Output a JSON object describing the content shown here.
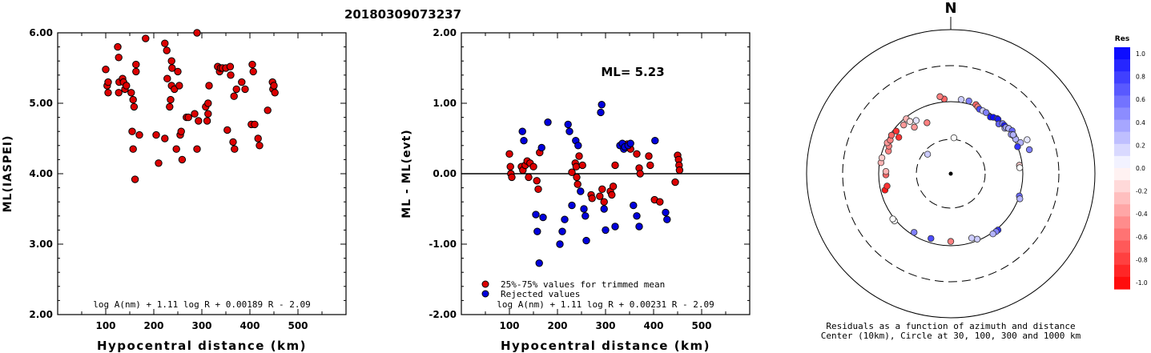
{
  "page_title": "20180309073237",
  "chart_data": [
    {
      "type": "scatter",
      "xlabel": "Hypocentral distance (km)",
      "ylabel": "ML(IASPEI)",
      "xlim": [
        0,
        600
      ],
      "ylim": [
        2.0,
        6.0
      ],
      "x_ticks": [
        "100",
        "200",
        "300",
        "400",
        "500"
      ],
      "y_ticks": [
        "2.00",
        "3.00",
        "4.00",
        "5.00",
        "6.00"
      ],
      "formula": "log A(nm) + 1.11 log R + 0.00189 R - 2.09",
      "series": [
        {
          "color": "#dd0000",
          "points": [
            [
              100,
              5.48
            ],
            [
              103,
              5.25
            ],
            [
              105,
              5.15
            ],
            [
              105,
              5.3
            ],
            [
              125,
              5.8
            ],
            [
              127,
              5.65
            ],
            [
              127,
              5.15
            ],
            [
              128,
              5.3
            ],
            [
              135,
              5.35
            ],
            [
              137,
              5.3
            ],
            [
              140,
              5.2
            ],
            [
              143,
              5.25
            ],
            [
              153,
              5.15
            ],
            [
              155,
              4.6
            ],
            [
              157,
              4.35
            ],
            [
              157,
              5.05
            ],
            [
              159,
              4.95
            ],
            [
              161,
              3.92
            ],
            [
              163,
              5.55
            ],
            [
              163,
              5.45
            ],
            [
              170,
              4.55
            ],
            [
              183,
              5.92
            ],
            [
              205,
              4.55
            ],
            [
              210,
              4.15
            ],
            [
              223,
              4.5
            ],
            [
              223,
              5.85
            ],
            [
              227,
              5.75
            ],
            [
              228,
              5.35
            ],
            [
              233,
              4.95
            ],
            [
              235,
              5.05
            ],
            [
              237,
              5.25
            ],
            [
              237,
              5.6
            ],
            [
              238,
              5.5
            ],
            [
              243,
              5.2
            ],
            [
              247,
              4.35
            ],
            [
              250,
              5.45
            ],
            [
              253,
              5.25
            ],
            [
              255,
              4.55
            ],
            [
              257,
              4.6
            ],
            [
              259,
              4.2
            ],
            [
              268,
              4.8
            ],
            [
              272,
              4.8
            ],
            [
              285,
              4.85
            ],
            [
              290,
              4.35
            ],
            [
              290,
              6.0
            ],
            [
              293,
              4.75
            ],
            [
              308,
              4.95
            ],
            [
              311,
              4.75
            ],
            [
              313,
              5.0
            ],
            [
              313,
              4.85
            ],
            [
              315,
              5.25
            ],
            [
              333,
              5.52
            ],
            [
              337,
              5.45
            ],
            [
              339,
              5.5
            ],
            [
              343,
              5.5
            ],
            [
              350,
              5.5
            ],
            [
              353,
              4.62
            ],
            [
              359,
              5.52
            ],
            [
              360,
              5.4
            ],
            [
              365,
              4.45
            ],
            [
              367,
              5.1
            ],
            [
              368,
              4.35
            ],
            [
              372,
              5.2
            ],
            [
              383,
              5.3
            ],
            [
              390,
              5.2
            ],
            [
              403,
              4.7
            ],
            [
              405,
              5.55
            ],
            [
              407,
              5.45
            ],
            [
              410,
              4.7
            ],
            [
              417,
              4.5
            ],
            [
              420,
              4.4
            ],
            [
              437,
              4.9
            ],
            [
              447,
              5.3
            ],
            [
              448,
              5.2
            ],
            [
              450,
              5.25
            ],
            [
              452,
              5.15
            ]
          ]
        }
      ]
    },
    {
      "type": "scatter",
      "xlabel": "Hypocentral distance (km)",
      "ylabel": "ML - ML(evt)",
      "xlim": [
        0,
        600
      ],
      "ylim": [
        -2.0,
        2.0
      ],
      "x_ticks": [
        "100",
        "200",
        "300",
        "400",
        "500"
      ],
      "y_ticks": [
        "-2.00",
        "-1.00",
        "0.00",
        "1.00",
        "2.00"
      ],
      "ml_text": "ML= 5.23",
      "formula": "log A(nm) + 1.11 log R + 0.00231 R - 2.09",
      "series": [
        {
          "name": "25%-75% values for trimmed mean",
          "color": "#dd0000",
          "points": [
            [
              100,
              0.28
            ],
            [
              102,
              0.1
            ],
            [
              103,
              0.0
            ],
            [
              105,
              -0.05
            ],
            [
              125,
              0.1
            ],
            [
              128,
              0.05
            ],
            [
              133,
              0.12
            ],
            [
              137,
              0.18
            ],
            [
              140,
              -0.05
            ],
            [
              143,
              0.15
            ],
            [
              150,
              0.1
            ],
            [
              157,
              -0.1
            ],
            [
              160,
              -0.22
            ],
            [
              163,
              0.3
            ],
            [
              230,
              0.02
            ],
            [
              237,
              0.15
            ],
            [
              239,
              0.1
            ],
            [
              240,
              -0.05
            ],
            [
              242,
              -0.15
            ],
            [
              245,
              0.25
            ],
            [
              252,
              0.12
            ],
            [
              270,
              -0.3
            ],
            [
              272,
              -0.35
            ],
            [
              288,
              -0.32
            ],
            [
              293,
              -0.22
            ],
            [
              297,
              -0.4
            ],
            [
              310,
              -0.25
            ],
            [
              313,
              -0.3
            ],
            [
              316,
              -0.18
            ],
            [
              320,
              0.12
            ],
            [
              345,
              0.42
            ],
            [
              352,
              0.35
            ],
            [
              365,
              0.28
            ],
            [
              370,
              0.08
            ],
            [
              372,
              0.0
            ],
            [
              390,
              0.25
            ],
            [
              393,
              0.12
            ],
            [
              402,
              -0.37
            ],
            [
              413,
              -0.4
            ],
            [
              445,
              -0.12
            ],
            [
              450,
              0.26
            ],
            [
              452,
              0.2
            ],
            [
              453,
              0.12
            ],
            [
              454,
              0.05
            ]
          ]
        },
        {
          "name": "Rejected values",
          "color": "#0000dd",
          "points": [
            [
              127,
              0.6
            ],
            [
              130,
              0.47
            ],
            [
              155,
              -0.58
            ],
            [
              158,
              -0.82
            ],
            [
              162,
              -1.27
            ],
            [
              167,
              0.37
            ],
            [
              170,
              -0.62
            ],
            [
              180,
              0.73
            ],
            [
              205,
              -1.0
            ],
            [
              210,
              -0.82
            ],
            [
              215,
              -0.65
            ],
            [
              222,
              0.7
            ],
            [
              225,
              0.6
            ],
            [
              230,
              -0.45
            ],
            [
              238,
              0.47
            ],
            [
              243,
              0.4
            ],
            [
              248,
              -0.25
            ],
            [
              255,
              -0.5
            ],
            [
              258,
              -0.6
            ],
            [
              260,
              -0.95
            ],
            [
              290,
              0.87
            ],
            [
              292,
              0.98
            ],
            [
              297,
              -0.5
            ],
            [
              300,
              -0.8
            ],
            [
              320,
              -0.75
            ],
            [
              330,
              0.4
            ],
            [
              335,
              0.43
            ],
            [
              338,
              0.35
            ],
            [
              340,
              0.38
            ],
            [
              347,
              0.4
            ],
            [
              352,
              0.43
            ],
            [
              358,
              -0.45
            ],
            [
              365,
              -0.6
            ],
            [
              370,
              -0.75
            ],
            [
              403,
              0.47
            ],
            [
              425,
              -0.55
            ],
            [
              428,
              -0.65
            ]
          ]
        }
      ]
    },
    {
      "type": "polar-scatter",
      "north_label": "N",
      "caption": [
        "Residuals as a function of azimuth and distance",
        "Center (10km), Circle at 30, 100, 300 and 1000 km"
      ],
      "colorbar_title": "Res",
      "colorbar_ticks": [
        "1.0",
        "0.8",
        "0.6",
        "0.4",
        "0.2",
        "0.0",
        "-0.2",
        "-0.4",
        "-0.6",
        "-0.8",
        "-1.0"
      ],
      "points": [
        [
          -5,
          0.52,
          -0.6
        ],
        [
          8,
          0.52,
          0.2
        ],
        [
          14,
          0.52,
          0.5
        ],
        [
          20,
          0.51,
          -0.6
        ],
        [
          22,
          0.5,
          -0.5
        ],
        [
          24,
          0.49,
          0.7
        ],
        [
          27,
          0.49,
          0.2
        ],
        [
          30,
          0.49,
          0.5
        ],
        [
          35,
          0.48,
          0.9
        ],
        [
          37,
          0.49,
          0.95
        ],
        [
          40,
          0.5,
          0.8
        ],
        [
          41,
          0.5,
          0.9
        ],
        [
          44,
          0.48,
          0.6
        ],
        [
          46,
          0.5,
          0.5
        ],
        [
          48,
          0.5,
          0.9
        ],
        [
          50,
          0.49,
          0.3
        ],
        [
          50,
          0.5,
          0.4
        ],
        [
          52,
          0.51,
          0.5
        ],
        [
          52,
          0.51,
          0.3
        ],
        [
          55,
          0.52,
          0.6
        ],
        [
          57,
          0.5,
          0.4
        ],
        [
          59,
          0.51,
          0.4
        ],
        [
          62,
          0.51,
          0.3
        ],
        [
          58,
          0.51,
          0.3
        ],
        [
          66,
          0.53,
          0.3
        ],
        [
          66,
          0.58,
          0.1
        ],
        [
          68,
          0.5,
          0.8
        ],
        [
          73,
          0.57,
          0.5
        ],
        [
          83,
          0.48,
          -0.2
        ],
        [
          85,
          0.48,
          0.0
        ],
        [
          108,
          0.5,
          0.6
        ],
        [
          110,
          0.51,
          0.3
        ],
        [
          140,
          0.51,
          0.8
        ],
        [
          142,
          0.51,
          0.5
        ],
        [
          145,
          0.51,
          0.3
        ],
        [
          158,
          0.49,
          0.2
        ],
        [
          162,
          0.47,
          0.2
        ],
        [
          180,
          0.47,
          -0.5
        ],
        [
          197,
          0.47,
          0.7
        ],
        [
          212,
          0.48,
          0.5
        ],
        [
          230,
          0.51,
          0.0
        ],
        [
          232,
          0.51,
          0.0
        ],
        [
          256,
          0.47,
          -0.9
        ],
        [
          259,
          0.45,
          -0.8
        ],
        [
          269,
          0.45,
          -0.6
        ],
        [
          272,
          0.45,
          -0.3
        ],
        [
          279,
          0.49,
          -0.3
        ],
        [
          283,
          0.49,
          -0.2
        ],
        [
          290,
          0.46,
          -0.5
        ],
        [
          294,
          0.47,
          -0.5
        ],
        [
          296,
          0.49,
          -0.4
        ],
        [
          299,
          0.48,
          -0.5
        ],
        [
          303,
          0.49,
          -0.6
        ],
        [
          305,
          0.44,
          -0.8
        ],
        [
          308,
          0.48,
          -0.8
        ],
        [
          316,
          0.47,
          -0.4
        ],
        [
          321,
          0.49,
          -0.3
        ],
        [
          322,
          0.46,
          -0.1
        ],
        [
          322,
          0.41,
          -0.4
        ],
        [
          327,
          0.44,
          0.1
        ],
        [
          335,
          0.39,
          -0.5
        ],
        [
          352,
          0.54,
          -0.5
        ],
        [
          5,
          0.25,
          0.0
        ],
        [
          310,
          0.21,
          0.2
        ]
      ]
    }
  ]
}
